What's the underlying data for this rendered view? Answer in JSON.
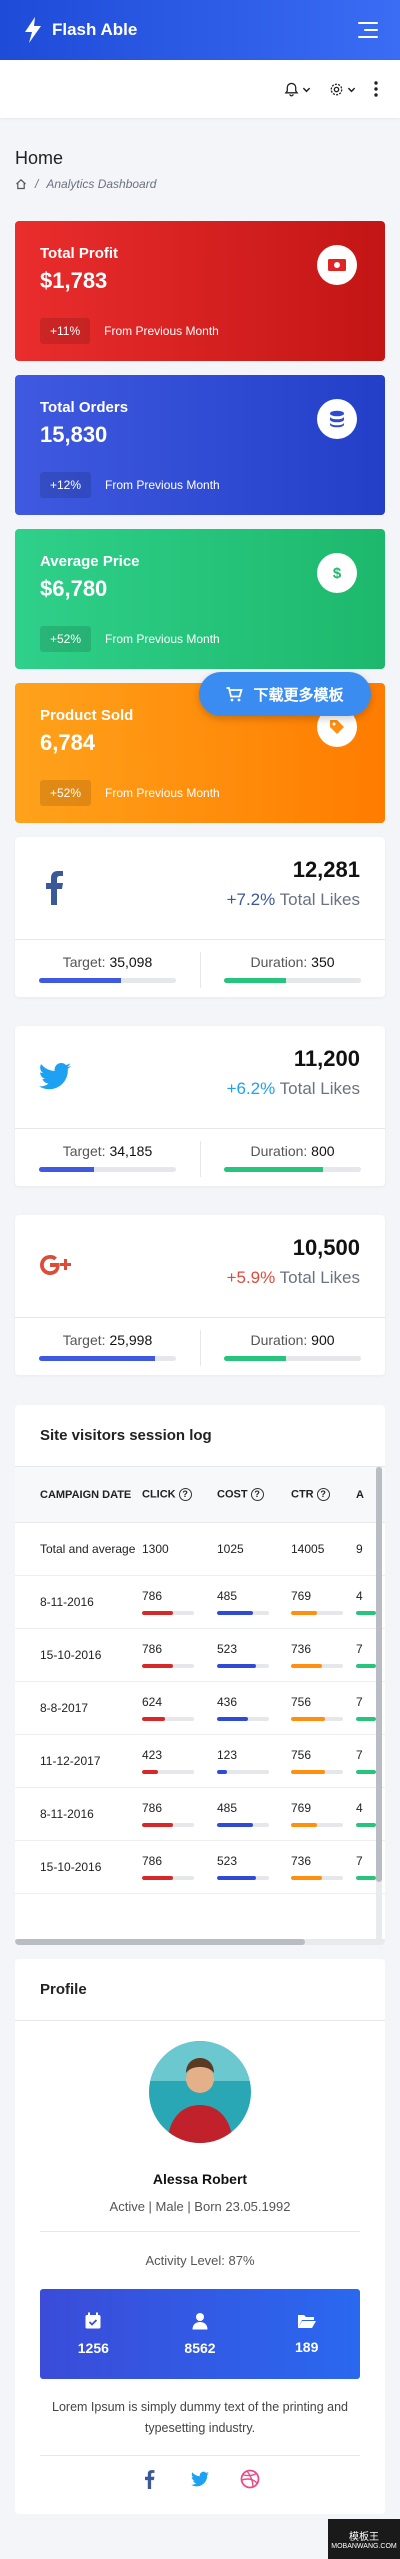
{
  "header": {
    "brand": "Flash Able"
  },
  "breadcrumb": {
    "title": "Home",
    "sep": "/",
    "current": "Analytics Dashboard"
  },
  "stats": [
    {
      "label": "Total Profit",
      "value": "$1,783",
      "change": "+11%",
      "note": "From Previous Month",
      "color": "#e02424"
    },
    {
      "label": "Total Orders",
      "value": "15,830",
      "change": "+12%",
      "note": "From Previous Month",
      "color": "#2f4bd6"
    },
    {
      "label": "Average Price",
      "value": "$6,780",
      "change": "+52%",
      "note": "From Previous Month",
      "color": "#26c47c"
    },
    {
      "label": "Product Sold",
      "value": "6,784",
      "change": "+52%",
      "note": "From Previous Month",
      "color": "#ff8f0e"
    }
  ],
  "download_banner": {
    "label": "下载更多模板"
  },
  "social": [
    {
      "network": "facebook",
      "count": "12,281",
      "pct": "+7.2%",
      "likes": "Total Likes",
      "pct_color": "#3b5998",
      "target_label": "Target:",
      "target": "35,098",
      "duration_label": "Duration:",
      "duration": "350",
      "target_fill": 0.6,
      "duration_fill": 0.45
    },
    {
      "network": "twitter",
      "count": "11,200",
      "pct": "+6.2%",
      "likes": "Total Likes",
      "pct_color": "#1da1f2",
      "target_label": "Target:",
      "target": "34,185",
      "duration_label": "Duration:",
      "duration": "800",
      "target_fill": 0.4,
      "duration_fill": 0.72
    },
    {
      "network": "google-plus",
      "count": "10,500",
      "pct": "+5.9%",
      "likes": "Total Likes",
      "pct_color": "#dd4b39",
      "target_label": "Target:",
      "target": "25,998",
      "duration_label": "Duration:",
      "duration": "900",
      "target_fill": 0.85,
      "duration_fill": 0.45
    }
  ],
  "session_log": {
    "title": "Site visitors session log",
    "columns": [
      "CAMPAIGN DATE",
      "CLICK",
      "COST",
      "CTR",
      "A"
    ],
    "rows": [
      {
        "date": "Total and average",
        "click": "1300",
        "cost": "1025",
        "ctr": "14005",
        "extra": "9",
        "bars": false
      },
      {
        "date": "8-11-2016",
        "click": "786",
        "cost": "485",
        "ctr": "769",
        "extra": "4",
        "bars": true,
        "f": [
          0.6,
          0.7,
          0.5
        ]
      },
      {
        "date": "15-10-2016",
        "click": "786",
        "cost": "523",
        "ctr": "736",
        "extra": "7",
        "bars": true,
        "f": [
          0.6,
          0.75,
          0.6
        ]
      },
      {
        "date": "8-8-2017",
        "click": "624",
        "cost": "436",
        "ctr": "756",
        "extra": "7",
        "bars": true,
        "f": [
          0.45,
          0.6,
          0.65
        ]
      },
      {
        "date": "11-12-2017",
        "click": "423",
        "cost": "123",
        "ctr": "756",
        "extra": "7",
        "bars": true,
        "f": [
          0.3,
          0.2,
          0.65
        ]
      },
      {
        "date": "8-11-2016",
        "click": "786",
        "cost": "485",
        "ctr": "769",
        "extra": "4",
        "bars": true,
        "f": [
          0.6,
          0.7,
          0.5
        ]
      },
      {
        "date": "15-10-2016",
        "click": "786",
        "cost": "523",
        "ctr": "736",
        "extra": "7",
        "bars": true,
        "f": [
          0.6,
          0.75,
          0.6
        ]
      }
    ]
  },
  "profile": {
    "title": "Profile",
    "name": "Alessa Robert",
    "meta": "Active | Male | Born 23.05.1992",
    "activity": "Activity Level: 87%",
    "stats": [
      {
        "icon": "calendar-check-icon",
        "value": "1256"
      },
      {
        "icon": "user-icon",
        "value": "8562"
      },
      {
        "icon": "folder-open-icon",
        "value": "189"
      }
    ],
    "description": "Lorem Ipsum is simply dummy text of the printing and typesetting industry."
  },
  "watermark": {
    "line1": "模板王",
    "line2": "MOBANWANG.COM"
  }
}
